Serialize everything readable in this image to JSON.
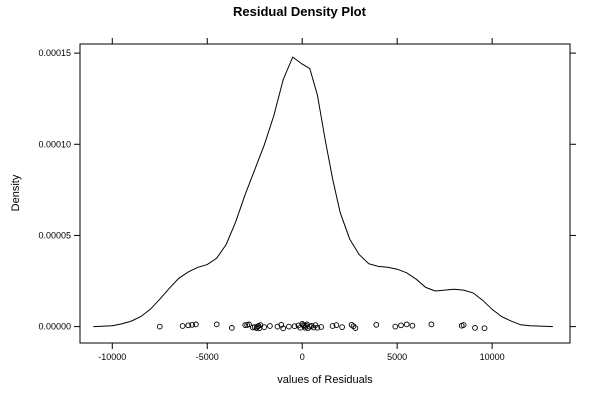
{
  "chart_data": {
    "type": "line",
    "title": "Residual Density Plot",
    "xlabel": "values of Residuals",
    "ylabel": "Density",
    "xlim": [
      -11700,
      14100
    ],
    "ylim": [
      -9e-06,
      0.000155
    ],
    "x_ticks": [
      -10000,
      -5000,
      0,
      5000,
      10000
    ],
    "x_tick_labels": [
      "-10000",
      "-5000",
      "0",
      "5000",
      "10000"
    ],
    "y_ticks": [
      0,
      5e-05,
      0.0001,
      0.00015
    ],
    "y_tick_labels": [
      "0.00000",
      "0.00005",
      "0.00010",
      "0.00015"
    ],
    "grid": false,
    "line_color": "#000000",
    "series": [
      {
        "kind": "density-curve",
        "x": [
          -11000,
          -10000,
          -9500,
          -9000,
          -8500,
          -8000,
          -7500,
          -7000,
          -6500,
          -6000,
          -5500,
          -5000,
          -4500,
          -4000,
          -3500,
          -3000,
          -2500,
          -2000,
          -1500,
          -1000,
          -500,
          0,
          400,
          800,
          1200,
          1600,
          2000,
          2500,
          3000,
          3500,
          4000,
          4500,
          5000,
          5500,
          6000,
          6500,
          7000,
          7500,
          8000,
          8500,
          9000,
          9500,
          10000,
          10500,
          11000,
          11500,
          12000,
          13200
        ],
        "y": [
          0.0,
          5e-07,
          1.5e-06,
          3e-06,
          5.5e-06,
          9.5e-06,
          1.5e-05,
          2.1e-05,
          2.65e-05,
          3e-05,
          3.25e-05,
          3.4e-05,
          3.75e-05,
          4.5e-05,
          5.75e-05,
          7.25e-05,
          8.6e-05,
          9.95e-05,
          0.0001155,
          0.0001355,
          0.0001478,
          0.000144,
          0.0001415,
          0.000127,
          0.000103,
          8.1e-05,
          6.25e-05,
          4.8e-05,
          3.95e-05,
          3.45e-05,
          3.3e-05,
          3.25e-05,
          3.15e-05,
          2.95e-05,
          2.6e-05,
          2.15e-05,
          1.95e-05,
          2e-05,
          2.05e-05,
          2e-05,
          1.85e-05,
          1.45e-05,
          9.5e-06,
          5.5e-06,
          3e-06,
          1e-06,
          5e-07,
          0.0
        ]
      },
      {
        "kind": "rug-points",
        "x": [
          -7500,
          -6300,
          -6000,
          -5800,
          -5600,
          -4500,
          -3700,
          -3000,
          -2900,
          -2800,
          -2600,
          -2500,
          -2400,
          -2350,
          -2300,
          -2250,
          -2200,
          -2000,
          -1700,
          -1300,
          -1100,
          -1000,
          -700,
          -400,
          -200,
          -100,
          0,
          50,
          100,
          150,
          200,
          250,
          300,
          400,
          500,
          600,
          700,
          800,
          1000,
          1600,
          1800,
          2100,
          2600,
          2700,
          2800,
          3900,
          4900,
          5200,
          5500,
          5800,
          6800,
          8400,
          8500,
          9100,
          9600
        ],
        "y": [
          0.0,
          3e-07,
          7e-07,
          1e-06,
          1.2e-06,
          1.2e-06,
          -7e-07,
          8e-07,
          9e-07,
          1.2e-06,
          -5e-07,
          -3e-07,
          -8e-07,
          0.0,
          4e-07,
          -8e-07,
          8e-07,
          -3e-07,
          3e-07,
          0.0,
          1e-06,
          -1e-06,
          0.0,
          2e-07,
          6e-07,
          -6e-07,
          1.5e-06,
          8e-07,
          3e-07,
          -6e-07,
          5e-07,
          1.2e-06,
          -9e-07,
          0.0,
          4e-07,
          -5e-07,
          8e-07,
          -6e-07,
          -2e-07,
          3e-07,
          8e-07,
          -3e-07,
          1e-06,
          2e-07,
          -8e-07,
          1e-06,
          0.0,
          7e-07,
          1.2e-06,
          5e-07,
          1.2e-06,
          5e-07,
          9e-07,
          -7e-07,
          -9e-07
        ]
      }
    ]
  }
}
